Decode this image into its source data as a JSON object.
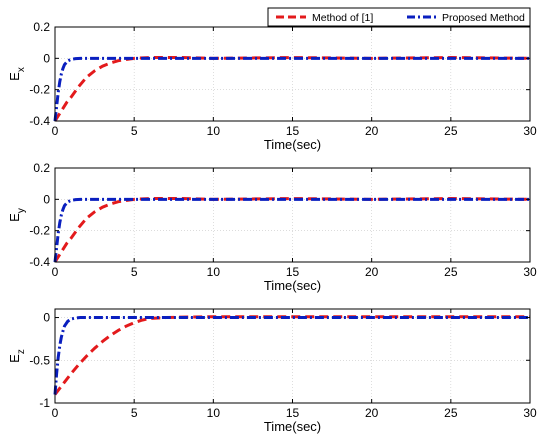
{
  "legend": {
    "items": [
      {
        "label": "Method of [1]",
        "color": "#e31a1c",
        "style": "dashed"
      },
      {
        "label": "Proposed Method",
        "color": "#0a1fbf",
        "style": "dashdot"
      }
    ]
  },
  "chart_data": [
    {
      "type": "line",
      "xlabel": "Time(sec)",
      "ylabel": "E",
      "ylabel_sub": "x",
      "xlim": [
        0,
        30
      ],
      "ylim": [
        -0.4,
        0.2
      ],
      "xticks": [
        0,
        5,
        10,
        15,
        20,
        25,
        30
      ],
      "yticks": [
        -0.4,
        -0.2,
        0,
        0.2
      ],
      "ytick_labels": [
        "-0.4",
        "-0.2",
        "0",
        "0.2"
      ],
      "grid": true,
      "legend_position": "top-right",
      "series": [
        {
          "name": "Method of [1]",
          "color": "#e31a1c",
          "style": "dashed",
          "x": [
            0,
            0.25,
            0.5,
            0.75,
            1,
            1.5,
            2,
            2.5,
            3,
            3.5,
            4,
            5,
            6,
            8,
            10,
            15,
            20,
            25,
            30
          ],
          "y": [
            -0.4,
            -0.36,
            -0.32,
            -0.28,
            -0.25,
            -0.18,
            -0.12,
            -0.08,
            -0.05,
            -0.03,
            -0.015,
            0,
            0.005,
            0.005,
            0,
            0.005,
            0,
            0.005,
            0
          ]
        },
        {
          "name": "Proposed Method",
          "color": "#0a1fbf",
          "style": "dashdot",
          "x": [
            0,
            0.1,
            0.2,
            0.3,
            0.4,
            0.5,
            0.6,
            0.8,
            1.0,
            1.3,
            1.6,
            2,
            5,
            10,
            20,
            30
          ],
          "y": [
            -0.4,
            -0.31,
            -0.22,
            -0.15,
            -0.1,
            -0.065,
            -0.04,
            -0.017,
            -0.007,
            -0.002,
            0,
            0,
            0,
            0,
            0,
            0
          ]
        }
      ]
    },
    {
      "type": "line",
      "xlabel": "Time(sec)",
      "ylabel": "E",
      "ylabel_sub": "y",
      "xlim": [
        0,
        30
      ],
      "ylim": [
        -0.4,
        0.2
      ],
      "xticks": [
        0,
        5,
        10,
        15,
        20,
        25,
        30
      ],
      "yticks": [
        -0.4,
        -0.2,
        0,
        0.2
      ],
      "ytick_labels": [
        "-0.4",
        "-0.2",
        "0",
        "0.2"
      ],
      "grid": true,
      "series": [
        {
          "name": "Method of [1]",
          "color": "#e31a1c",
          "style": "dashed",
          "x": [
            0,
            0.25,
            0.5,
            0.75,
            1,
            1.5,
            2,
            2.5,
            3,
            3.5,
            4,
            5,
            6,
            8,
            10,
            15,
            20,
            25,
            30
          ],
          "y": [
            -0.4,
            -0.36,
            -0.32,
            -0.28,
            -0.25,
            -0.18,
            -0.12,
            -0.08,
            -0.05,
            -0.03,
            -0.015,
            0,
            0.005,
            0.005,
            0,
            0.005,
            0,
            0.005,
            0
          ]
        },
        {
          "name": "Proposed Method",
          "color": "#0a1fbf",
          "style": "dashdot",
          "x": [
            0,
            0.1,
            0.2,
            0.3,
            0.4,
            0.5,
            0.6,
            0.8,
            1.0,
            1.3,
            1.6,
            2,
            5,
            10,
            20,
            30
          ],
          "y": [
            -0.4,
            -0.31,
            -0.22,
            -0.15,
            -0.1,
            -0.065,
            -0.04,
            -0.017,
            -0.007,
            -0.002,
            0,
            0,
            0,
            0,
            0,
            0
          ]
        }
      ]
    },
    {
      "type": "line",
      "xlabel": "Time(sec)",
      "ylabel": "E",
      "ylabel_sub": "z",
      "xlim": [
        0,
        30
      ],
      "ylim": [
        -1,
        0.1
      ],
      "xticks": [
        0,
        5,
        10,
        15,
        20,
        25,
        30
      ],
      "yticks": [
        -1,
        -0.5,
        0
      ],
      "ytick_labels": [
        "-1",
        "-0.5",
        "0"
      ],
      "grid": true,
      "series": [
        {
          "name": "Method of [1]",
          "color": "#e31a1c",
          "style": "dashed",
          "x": [
            0,
            0.5,
            1,
            1.5,
            2,
            2.5,
            3,
            3.5,
            4,
            4.5,
            5,
            5.5,
            6,
            7,
            8,
            10,
            15,
            20,
            25,
            30
          ],
          "y": [
            -0.9,
            -0.78,
            -0.66,
            -0.55,
            -0.45,
            -0.36,
            -0.28,
            -0.21,
            -0.15,
            -0.1,
            -0.06,
            -0.03,
            -0.01,
            0,
            0.005,
            0.01,
            0.01,
            0.01,
            0.01,
            0.01
          ]
        },
        {
          "name": "Proposed Method",
          "color": "#0a1fbf",
          "style": "dashdot",
          "x": [
            0,
            0.1,
            0.2,
            0.3,
            0.4,
            0.5,
            0.6,
            0.8,
            1.0,
            1.3,
            1.6,
            2,
            5,
            10,
            20,
            30
          ],
          "y": [
            -0.9,
            -0.66,
            -0.47,
            -0.33,
            -0.23,
            -0.16,
            -0.1,
            -0.045,
            -0.018,
            -0.005,
            0,
            0,
            0,
            0,
            0,
            0
          ]
        }
      ]
    }
  ]
}
